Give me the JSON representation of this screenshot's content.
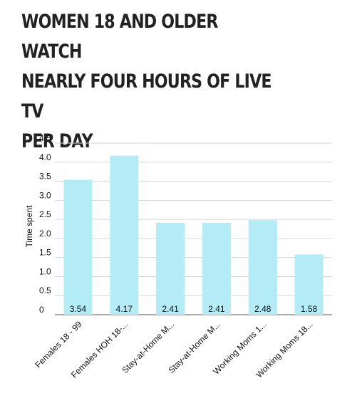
{
  "title_lines": [
    "WOMEN 18 AND OLDER WATCH",
    "NEARLY FOUR HOURS OF LIVE TV",
    "PER DAY"
  ],
  "chart_data": {
    "type": "bar",
    "title": "WOMEN 18 AND OLDER WATCH NEARLY FOUR HOURS OF LIVE TV PER DAY",
    "xlabel": "",
    "ylabel": "Time spent",
    "ylim": [
      0,
      4.5
    ],
    "yticks": [
      "0",
      "0.5",
      "1.0",
      "1.5",
      "2.0",
      "2.5",
      "3.0",
      "3.5",
      "4.0",
      "4.5"
    ],
    "categories": [
      "Females 18 - 99",
      "Females HOH 18-...",
      "Stay-at-Home M...",
      "Stay-at-Home M...",
      "Working Moms 1...",
      "Working Moms 18..."
    ],
    "values": [
      3.54,
      4.17,
      2.41,
      2.41,
      2.48,
      1.58
    ],
    "value_labels": [
      "3.54",
      "4.17",
      "2.41",
      "2.41",
      "2.48",
      "1.58"
    ],
    "grid": true,
    "bar_color": "#b3ecf7"
  }
}
